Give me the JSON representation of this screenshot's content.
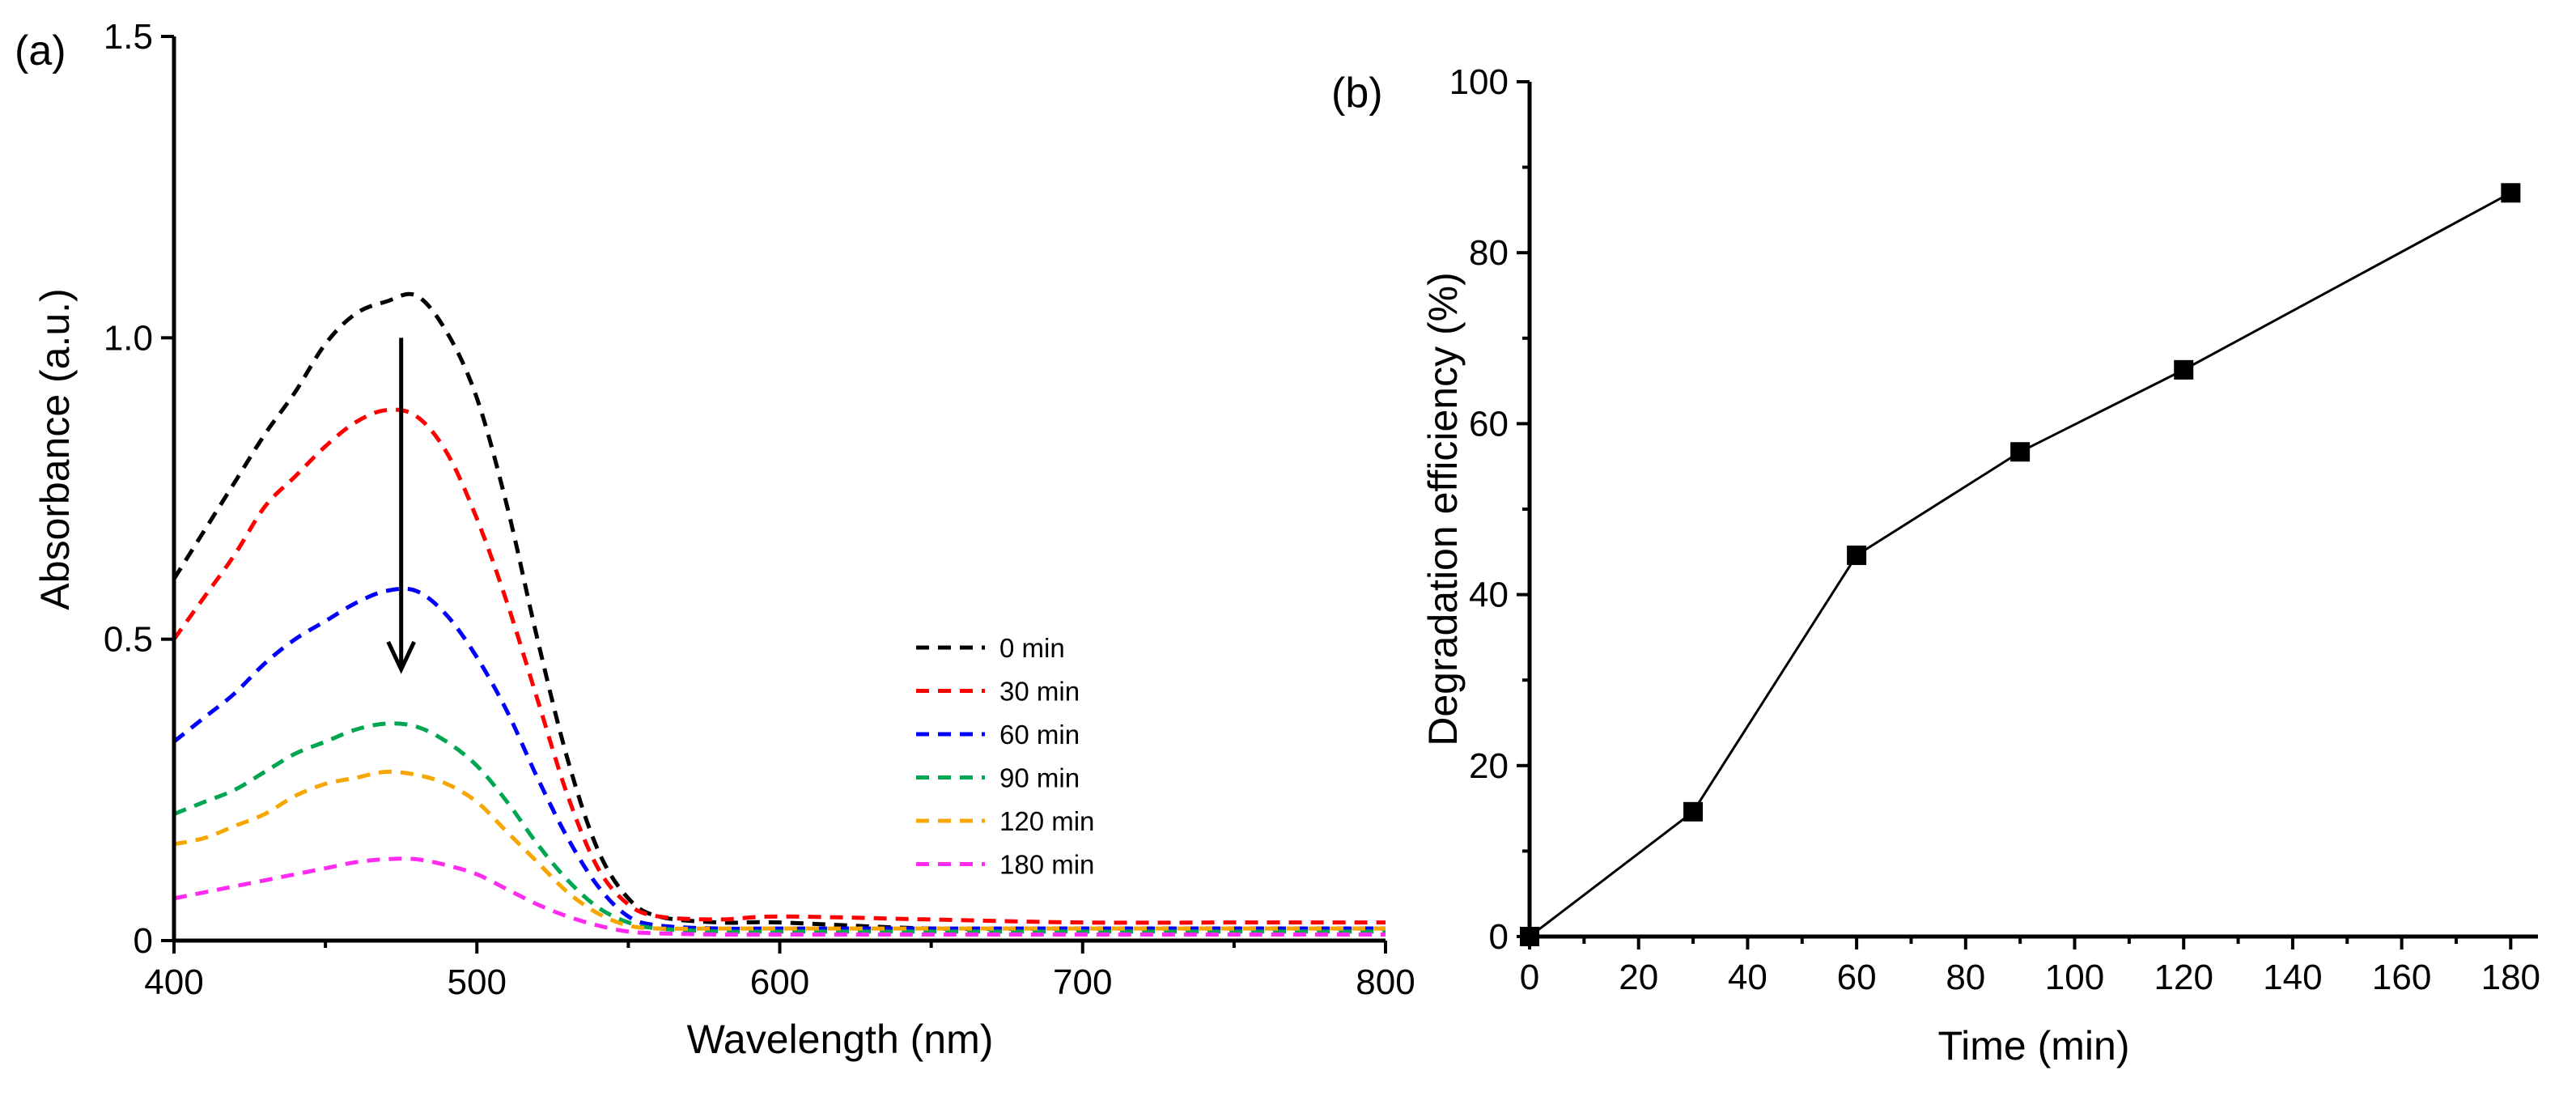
{
  "chart_data": [
    {
      "panel": "(a)",
      "type": "line",
      "xlabel": "Wavelength (nm)",
      "ylabel": "Absorbance (a.u.)",
      "xlim": [
        400,
        800
      ],
      "ylim": [
        0,
        1.5
      ],
      "x_ticks": [
        400,
        500,
        600,
        700,
        800
      ],
      "y_ticks": [
        0,
        0.5,
        1.0,
        1.5
      ],
      "y_tick_labels": [
        "0",
        "0.5",
        "1.0",
        "1.5"
      ],
      "legend_position": "center-right",
      "annotation": "downward arrow at ~475 nm indicating decreasing absorbance over time",
      "arrow": {
        "x": 475,
        "y_from": 1.0,
        "y_to": 0.45
      },
      "series": [
        {
          "name": "0   min",
          "color": "#000000",
          "x": [
            400,
            410,
            420,
            430,
            440,
            450,
            460,
            470,
            480,
            490,
            500,
            510,
            520,
            530,
            540,
            550,
            560,
            580,
            600,
            650,
            700,
            750,
            800
          ],
          "y": [
            0.6,
            0.68,
            0.76,
            0.84,
            0.91,
            0.99,
            1.04,
            1.06,
            1.07,
            1.01,
            0.9,
            0.72,
            0.5,
            0.3,
            0.15,
            0.07,
            0.04,
            0.03,
            0.03,
            0.02,
            0.02,
            0.02,
            0.02
          ]
        },
        {
          "name": "30 min",
          "color": "#ff0000",
          "x": [
            400,
            410,
            420,
            430,
            440,
            450,
            460,
            470,
            480,
            490,
            500,
            510,
            520,
            530,
            540,
            550,
            560,
            580,
            600,
            650,
            700,
            750,
            800
          ],
          "y": [
            0.5,
            0.57,
            0.64,
            0.72,
            0.77,
            0.82,
            0.86,
            0.88,
            0.87,
            0.81,
            0.7,
            0.56,
            0.4,
            0.24,
            0.12,
            0.06,
            0.04,
            0.035,
            0.04,
            0.035,
            0.03,
            0.03,
            0.03
          ]
        },
        {
          "name": "60 min",
          "color": "#0000ff",
          "x": [
            400,
            410,
            420,
            430,
            440,
            450,
            460,
            470,
            480,
            490,
            500,
            510,
            520,
            530,
            540,
            550,
            560,
            580,
            600,
            650,
            700,
            750,
            800
          ],
          "y": [
            0.33,
            0.37,
            0.41,
            0.46,
            0.5,
            0.53,
            0.56,
            0.58,
            0.58,
            0.54,
            0.47,
            0.38,
            0.27,
            0.17,
            0.09,
            0.04,
            0.025,
            0.02,
            0.02,
            0.02,
            0.02,
            0.02,
            0.02
          ]
        },
        {
          "name": "90 min",
          "color": "#00a651",
          "x": [
            400,
            410,
            420,
            430,
            440,
            450,
            460,
            470,
            480,
            490,
            500,
            510,
            520,
            530,
            540,
            550,
            560,
            580,
            600,
            650,
            700,
            750,
            800
          ],
          "y": [
            0.21,
            0.23,
            0.25,
            0.28,
            0.31,
            0.33,
            0.35,
            0.36,
            0.355,
            0.33,
            0.29,
            0.23,
            0.16,
            0.1,
            0.055,
            0.03,
            0.02,
            0.015,
            0.015,
            0.015,
            0.015,
            0.015,
            0.015
          ]
        },
        {
          "name": "120 min",
          "color": "#f7a600",
          "x": [
            400,
            410,
            420,
            430,
            440,
            450,
            460,
            470,
            480,
            490,
            500,
            510,
            520,
            530,
            540,
            550,
            560,
            580,
            600,
            650,
            700,
            750,
            800
          ],
          "y": [
            0.16,
            0.17,
            0.19,
            0.21,
            0.24,
            0.26,
            0.27,
            0.28,
            0.275,
            0.26,
            0.23,
            0.18,
            0.13,
            0.08,
            0.045,
            0.025,
            0.02,
            0.02,
            0.02,
            0.02,
            0.02,
            0.02,
            0.02
          ]
        },
        {
          "name": "180 min",
          "color": "#ff2bf0",
          "x": [
            400,
            410,
            420,
            430,
            440,
            450,
            460,
            470,
            480,
            490,
            500,
            510,
            520,
            530,
            540,
            550,
            560,
            580,
            600,
            650,
            700,
            750,
            800
          ],
          "y": [
            0.07,
            0.08,
            0.09,
            0.1,
            0.11,
            0.12,
            0.13,
            0.135,
            0.135,
            0.125,
            0.11,
            0.085,
            0.06,
            0.04,
            0.025,
            0.015,
            0.012,
            0.01,
            0.01,
            0.01,
            0.01,
            0.01,
            0.01
          ]
        }
      ]
    },
    {
      "panel": "(b)",
      "type": "line",
      "xlabel": "Time (min)",
      "ylabel": "Degradation efficiency (%)",
      "xlim": [
        0,
        185
      ],
      "ylim": [
        0,
        100
      ],
      "x_ticks": [
        0,
        20,
        40,
        60,
        80,
        100,
        120,
        140,
        160,
        180
      ],
      "y_ticks": [
        0,
        20,
        40,
        60,
        80,
        100
      ],
      "marker": "square",
      "series": [
        {
          "name": "Degradation efficiency",
          "color": "#000000",
          "x": [
            0,
            30,
            60,
            90,
            120,
            180
          ],
          "y": [
            0,
            14.6,
            44.6,
            56.7,
            66.3,
            87.0
          ]
        }
      ]
    }
  ]
}
